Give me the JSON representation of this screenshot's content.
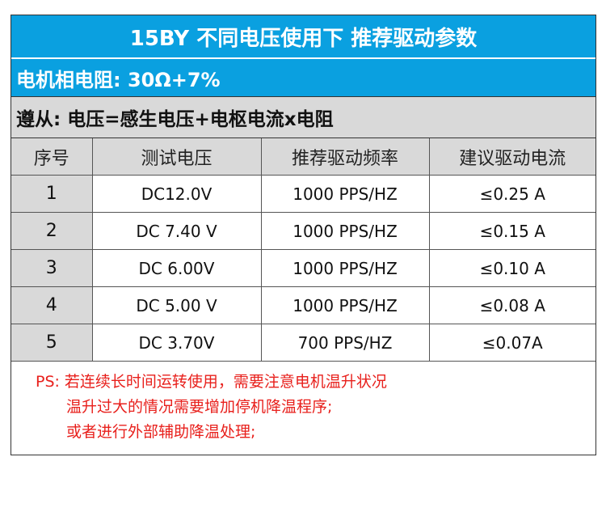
{
  "title": "15BY 不同电压使用下 推荐驱动参数",
  "resistance": "电机相电阻: 30Ω+7%",
  "formula": "遵从: 电压=感生电压+电枢电流x电阻",
  "table": {
    "headers": [
      "序号",
      "测试电压",
      "推荐驱动频率",
      "建议驱动电流"
    ],
    "rows": [
      {
        "index": "1",
        "voltage": "DC12.0V",
        "frequency": "1000 PPS/HZ",
        "current": "≤0.25 A"
      },
      {
        "index": "2",
        "voltage": "DC 7.40 V",
        "frequency": "1000 PPS/HZ",
        "current": "≤0.15 A"
      },
      {
        "index": "3",
        "voltage": "DC 6.00V",
        "frequency": "1000 PPS/HZ",
        "current": "≤0.10 A"
      },
      {
        "index": "4",
        "voltage": "DC 5.00 V",
        "frequency": "1000 PPS/HZ",
        "current": "≤0.08 A"
      },
      {
        "index": "5",
        "voltage": "DC 3.70V",
        "frequency": "700 PPS/HZ",
        "current": "≤0.07A"
      }
    ]
  },
  "note": {
    "label": "PS:",
    "line1": "若连续长时间运转使用，需要注意电机温升状况",
    "line2": "温升过大的情况需要增加停机降温程序;",
    "line3": "或者进行外部辅助降温处理;"
  },
  "colors": {
    "header_blue": "#0aa0e0",
    "gray": "#d9d9d9",
    "note_red": "#e8201c"
  }
}
